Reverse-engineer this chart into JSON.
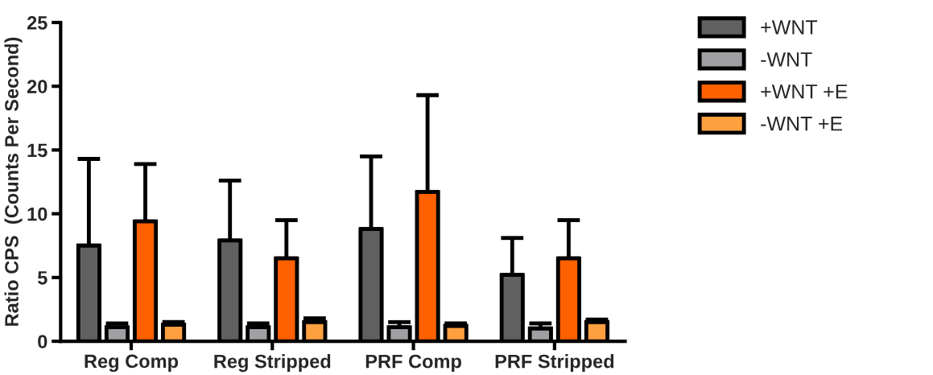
{
  "chart_data": {
    "type": "bar",
    "ylabel": "Ratio CPS  (Counts Per Second)",
    "categories": [
      "Reg Comp",
      "Reg Stripped",
      "PRF Comp",
      "PRF Stripped"
    ],
    "series": [
      {
        "name": "+WNT",
        "color": "#606060",
        "values": [
          7.5,
          7.9,
          8.8,
          5.2
        ],
        "errors": [
          [
            7.5,
            14.3
          ],
          [
            7.9,
            12.6
          ],
          [
            8.8,
            14.5
          ],
          [
            5.2,
            8.1
          ]
        ]
      },
      {
        "name": "-WNT",
        "color": "#a0a0a4",
        "values": [
          1.1,
          1.1,
          1.1,
          1.0
        ],
        "errors": [
          [
            1.1,
            1.4
          ],
          [
            1.1,
            1.4
          ],
          [
            1.1,
            1.5
          ],
          [
            1.0,
            1.4
          ]
        ]
      },
      {
        "name": "+WNT +E",
        "color": "#ff6000",
        "values": [
          9.4,
          6.5,
          11.7,
          6.5
        ],
        "errors": [
          [
            9.4,
            13.9
          ],
          [
            6.5,
            9.5
          ],
          [
            11.7,
            19.3
          ],
          [
            6.5,
            9.5
          ]
        ]
      },
      {
        "name": "-WNT +E",
        "color": "#ffa040",
        "values": [
          1.3,
          1.5,
          1.2,
          1.5
        ],
        "errors": [
          [
            1.3,
            1.5
          ],
          [
            1.5,
            1.8
          ],
          [
            1.2,
            1.4
          ],
          [
            1.5,
            1.7
          ]
        ]
      }
    ],
    "ylim": [
      0,
      25
    ],
    "yticks": [
      0,
      5,
      10,
      15,
      20,
      25
    ],
    "grid": false,
    "legend": "top right"
  }
}
